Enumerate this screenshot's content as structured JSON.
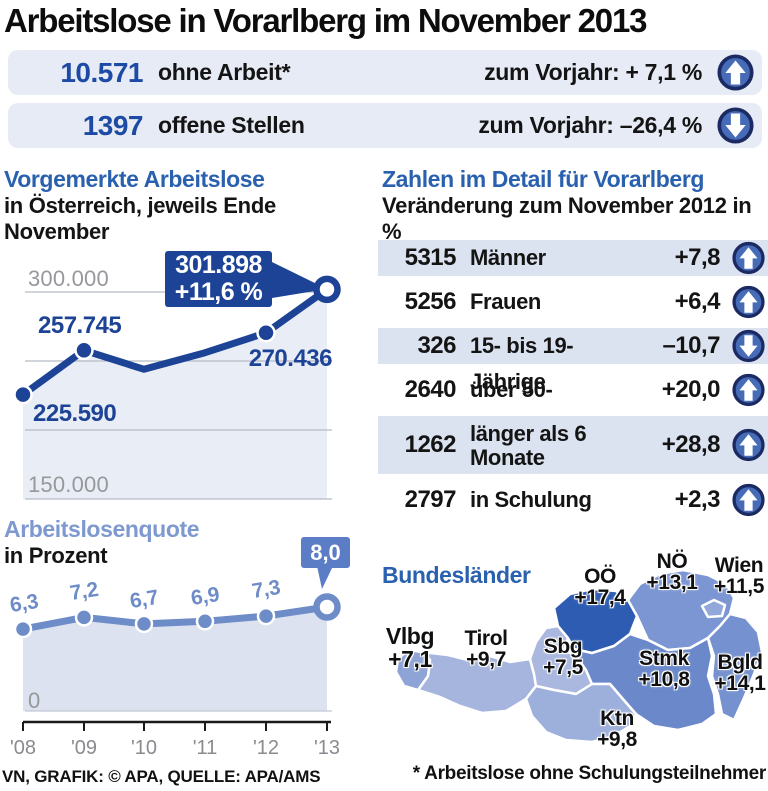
{
  "header": {
    "title": "Arbeitslose in Vorarlberg im November 2013"
  },
  "stats": [
    {
      "value": "10.571",
      "label": "ohne Arbeit*",
      "change_label": "zum Vorjahr: + 7,1 %",
      "direction": "up"
    },
    {
      "value": "1397",
      "label": "offene Stellen",
      "change_label": "zum Vorjahr: –26,4 %",
      "direction": "down"
    }
  ],
  "footer": {
    "source": "VN, GRAFIK: © APA, QUELLE: APA/AMS",
    "note": "* Arbeitslose ohne Schulungsteilnehmer"
  },
  "colors": {
    "dark_blue": "#1d4396",
    "title_blue": "#2a61ae",
    "number_blue": "#1c4aa4",
    "periwinkle": "#6e8cc8",
    "bar_bg": "#e7ebf5",
    "row_shade": "#dbe2f0",
    "map_darkest": "#2e5cb2"
  },
  "chart_data": [
    {
      "type": "line",
      "title": "Vorgemerkte Arbeitslose",
      "subtitle": "in Österreich, jeweils Ende November",
      "x": [
        "'08",
        "'09",
        "'10",
        "'11",
        "'12",
        "'13"
      ],
      "values": [
        225590,
        257745,
        244000,
        256000,
        270436,
        301898
      ],
      "ylim": [
        150000,
        310000
      ],
      "gridline_values": [
        300000,
        250000,
        200000,
        150000
      ],
      "gridline_labels": {
        "top": "300.000",
        "bottom": "150.000"
      },
      "point_labels": [
        "225.590",
        "257.745",
        "",
        "",
        "270.436",
        ""
      ],
      "callout": {
        "value": "301.898",
        "change": "+11,6 %"
      },
      "line_color": "#1d4396",
      "area_color": "#e9edf5"
    },
    {
      "type": "line",
      "title": "Arbeitslosenquote",
      "subtitle": "in Prozent",
      "x": [
        "'08",
        "'09",
        "'10",
        "'11",
        "'12",
        "'13"
      ],
      "values": [
        6.3,
        7.2,
        6.7,
        6.9,
        7.3,
        8.0
      ],
      "ylim": [
        0,
        8.5
      ],
      "zero_label": "0",
      "point_labels": [
        "6,3",
        "7,2",
        "6,7",
        "6,9",
        "7,3",
        ""
      ],
      "callout": {
        "value": "8,0"
      },
      "line_color": "#6e8cc8",
      "area_color": "#dce2ef"
    },
    {
      "type": "table",
      "title": "Zahlen im Detail für Vorarlberg",
      "subtitle": "Veränderung zum November 2012 in %",
      "rows": [
        {
          "count": "5315",
          "label": "Männer",
          "change": "+7,8",
          "direction": "up"
        },
        {
          "count": "5256",
          "label": "Frauen",
          "change": "+6,4",
          "direction": "up"
        },
        {
          "count": "326",
          "label": "15- bis 19-Jährige",
          "change": "–10,7",
          "direction": "down"
        },
        {
          "count": "2640",
          "label": "über 50-Jährige",
          "change": "+20,0",
          "direction": "up"
        },
        {
          "count": "1262",
          "label": "länger als 6 Monate",
          "change": "+28,8",
          "direction": "up"
        },
        {
          "count": "2797",
          "label": "in Schulung",
          "change": "+2,3",
          "direction": "up"
        }
      ]
    },
    {
      "type": "choropleth",
      "title": "Bundesländer",
      "regions": [
        {
          "id": "vlbg",
          "label": "Vlbg",
          "value": "+7,1",
          "color": "#8ea4d6"
        },
        {
          "id": "tirol",
          "label": "Tirol",
          "value": "+9,7",
          "color": "#a6b5de"
        },
        {
          "id": "sbg",
          "label": "Sbg",
          "value": "+7,5",
          "color": "#aab8e0"
        },
        {
          "id": "ooe",
          "label": "OÖ",
          "value": "+17,4",
          "color": "#2e5cb2"
        },
        {
          "id": "noe",
          "label": "NÖ",
          "value": "+13,1",
          "color": "#7b96d3"
        },
        {
          "id": "wien",
          "label": "Wien",
          "value": "+11,5",
          "color": "#92a8da"
        },
        {
          "id": "stmk",
          "label": "Stmk",
          "value": "+10,8",
          "color": "#6a88ca"
        },
        {
          "id": "ktn",
          "label": "Ktn",
          "value": "+9,8",
          "color": "#9db0dc"
        },
        {
          "id": "bgld",
          "label": "Bgld",
          "value": "+14,1",
          "color": "#7591cf"
        }
      ]
    }
  ]
}
